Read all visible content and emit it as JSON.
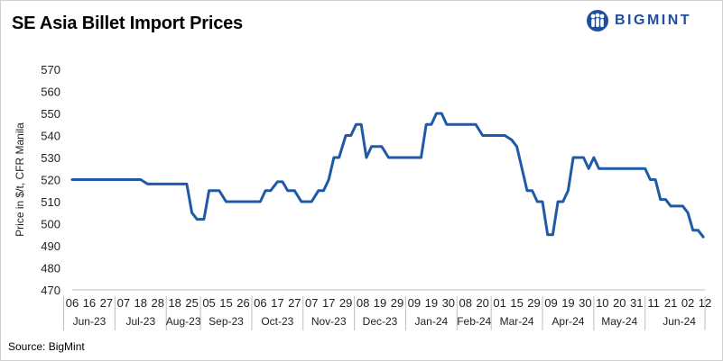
{
  "header": {
    "title": "SE Asia Billet Import Prices"
  },
  "brand": {
    "name": "BIGMINT",
    "color": "#1f4e9c",
    "icon": "bigmint-people-icon"
  },
  "footer": {
    "source": "Source: BigMint"
  },
  "chart_data": {
    "type": "line",
    "title": "SE Asia Billet Import Prices",
    "ylabel": "Price in $/t, CFR Manila",
    "xlabel": "",
    "ylim": [
      470,
      570
    ],
    "yticks": [
      470,
      480,
      490,
      500,
      510,
      520,
      530,
      540,
      550,
      560,
      570
    ],
    "grid": false,
    "line_color": "#1f5aa6",
    "x_tick_labels": [
      "06",
      "16",
      "27",
      "07",
      "18",
      "28",
      "18",
      "25",
      "05",
      "15",
      "26",
      "06",
      "17",
      "27",
      "07",
      "17",
      "29",
      "08",
      "19",
      "29",
      "09",
      "19",
      "30",
      "08",
      "20",
      "01",
      "15",
      "29",
      "09",
      "19",
      "30",
      "10",
      "20",
      "31",
      "11",
      "21",
      "02",
      "12"
    ],
    "months": [
      {
        "label": "Jun-23",
        "start": 0,
        "end": 3
      },
      {
        "label": "Jul-23",
        "start": 3,
        "end": 6
      },
      {
        "label": "Aug-23",
        "start": 6,
        "end": 8
      },
      {
        "label": "Sep-23",
        "start": 8,
        "end": 11
      },
      {
        "label": "Oct-23",
        "start": 11,
        "end": 14
      },
      {
        "label": "Nov-23",
        "start": 14,
        "end": 17
      },
      {
        "label": "Dec-23",
        "start": 17,
        "end": 20
      },
      {
        "label": "Jan-24",
        "start": 20,
        "end": 23
      },
      {
        "label": "Feb-24",
        "start": 23,
        "end": 25
      },
      {
        "label": "Mar-24",
        "start": 25,
        "end": 28
      },
      {
        "label": "Apr-24",
        "start": 28,
        "end": 31
      },
      {
        "label": "May-24",
        "start": 31,
        "end": 34
      },
      {
        "label": "Jun-24",
        "start": 34,
        "end": 38
      }
    ],
    "series": [
      {
        "values": [
          [
            0,
            520
          ],
          [
            1,
            520
          ],
          [
            2,
            520
          ],
          [
            3,
            520
          ],
          [
            4,
            520
          ],
          [
            4.2,
            519
          ],
          [
            4.4,
            518
          ],
          [
            5,
            518
          ],
          [
            6,
            518
          ],
          [
            6.7,
            518
          ],
          [
            7.0,
            505
          ],
          [
            7.3,
            502
          ],
          [
            7.7,
            502
          ],
          [
            8.0,
            515
          ],
          [
            8.4,
            515
          ],
          [
            8.6,
            515
          ],
          [
            9.0,
            510
          ],
          [
            10,
            510
          ],
          [
            11,
            510
          ],
          [
            11.3,
            515
          ],
          [
            11.6,
            515
          ],
          [
            12.0,
            519
          ],
          [
            12.3,
            519
          ],
          [
            12.6,
            515
          ],
          [
            13.0,
            515
          ],
          [
            13.4,
            510
          ],
          [
            13.8,
            510
          ],
          [
            14,
            510
          ],
          [
            14.4,
            515
          ],
          [
            14.7,
            515
          ],
          [
            15.0,
            520
          ],
          [
            15.3,
            530
          ],
          [
            15.6,
            530
          ],
          [
            16.0,
            540
          ],
          [
            16.3,
            540
          ],
          [
            16.6,
            545
          ],
          [
            16.9,
            545
          ],
          [
            17.2,
            530
          ],
          [
            17.5,
            535
          ],
          [
            17.8,
            535
          ],
          [
            18.1,
            535
          ],
          [
            18.5,
            530
          ],
          [
            19,
            530
          ],
          [
            20,
            530
          ],
          [
            20.4,
            530
          ],
          [
            20.7,
            545
          ],
          [
            21,
            545
          ],
          [
            21.3,
            550
          ],
          [
            21.6,
            550
          ],
          [
            21.9,
            545
          ],
          [
            22.5,
            545
          ],
          [
            23,
            545
          ],
          [
            23.6,
            545
          ],
          [
            24.0,
            540
          ],
          [
            24.6,
            540
          ],
          [
            25,
            540
          ],
          [
            25.3,
            540
          ],
          [
            25.7,
            538
          ],
          [
            26.0,
            535
          ],
          [
            26.3,
            525
          ],
          [
            26.6,
            515
          ],
          [
            26.9,
            515
          ],
          [
            27.2,
            510
          ],
          [
            27.5,
            510
          ],
          [
            27.8,
            495
          ],
          [
            28.1,
            495
          ],
          [
            28.4,
            510
          ],
          [
            28.7,
            510
          ],
          [
            29.0,
            515
          ],
          [
            29.3,
            530
          ],
          [
            29.6,
            530
          ],
          [
            29.9,
            530
          ],
          [
            30.2,
            525
          ],
          [
            30.5,
            530
          ],
          [
            30.8,
            525
          ],
          [
            31.5,
            525
          ],
          [
            32,
            525
          ],
          [
            32.5,
            525
          ],
          [
            33,
            525
          ],
          [
            33.5,
            525
          ],
          [
            33.8,
            520
          ],
          [
            34.1,
            520
          ],
          [
            34.4,
            511
          ],
          [
            34.7,
            511
          ],
          [
            35.0,
            508
          ],
          [
            35.4,
            508
          ],
          [
            35.7,
            508
          ],
          [
            36.0,
            505
          ],
          [
            36.3,
            497
          ],
          [
            36.6,
            497
          ],
          [
            36.9,
            494
          ]
        ]
      }
    ]
  }
}
